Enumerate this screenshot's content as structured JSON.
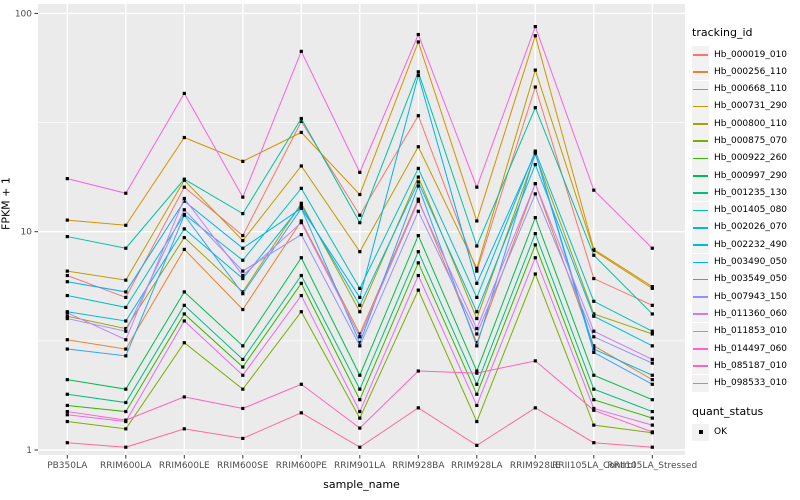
{
  "figure": {
    "y_axis": {
      "label": "FPKM + 1",
      "ticks": [
        {
          "label": "100",
          "value": 100
        },
        {
          "label": "10",
          "value": 10
        },
        {
          "label": "1",
          "value": 1
        }
      ]
    },
    "x_axis": {
      "label": "sample_name"
    },
    "panel_bg": "#EBEBEB",
    "grid_color": "#FFFFFF",
    "tick_color": "#333333",
    "tick_label_color": "#4D4D4D",
    "point_color": "#000000"
  },
  "chart_data": {
    "type": "line",
    "title": "",
    "xlabel": "sample_name",
    "ylabel": "FPKM + 1",
    "yscale": "log10",
    "ylim": [
      1,
      100
    ],
    "grid": true,
    "legend_position": "right",
    "legend": {
      "title": "tracking_id"
    },
    "point_legend": {
      "title": "quant_status",
      "label": "OK",
      "shape": "filled-square",
      "color": "#000000"
    },
    "x_categories": [
      "PB350LA",
      "RRIM600LA",
      "RRIM600LE",
      "RRIM600SE",
      "RRIM600PE",
      "RRIM901LA",
      "RRIM928BA",
      "RRIM928LA",
      "RRIM928LE",
      "RRII105LA_Control",
      "RRII105LA_Stressed"
    ],
    "series": [
      {
        "name": "Hb_000019_010",
        "color": "#F8766D",
        "values": [
          6.3,
          5.0,
          16.0,
          9.6,
          32,
          11.9,
          34,
          6.6,
          46,
          6.1,
          4.6
        ]
      },
      {
        "name": "Hb_000256_110",
        "color": "#EA8331",
        "values": [
          3.2,
          2.9,
          8.3,
          4.4,
          11.2,
          3.4,
          14.1,
          3.1,
          16.6,
          3.0,
          2.1
        ]
      },
      {
        "name": "Hb_000668_110",
        "color": "#D89000",
        "values": [
          11.3,
          10.7,
          27,
          21,
          28.5,
          14.8,
          74,
          11.2,
          79,
          8.3,
          5.6
        ]
      },
      {
        "name": "Hb_000731_290",
        "color": "#C09B00",
        "values": [
          6.6,
          6.0,
          17.2,
          9.1,
          20,
          8.1,
          24.5,
          6.8,
          55,
          8.2,
          5.5
        ]
      },
      {
        "name": "Hb_000800_110",
        "color": "#A3A500",
        "values": [
          4.1,
          3.6,
          9.4,
          5.3,
          13.5,
          4.3,
          17.8,
          4.0,
          22.6,
          4.2,
          3.4
        ]
      },
      {
        "name": "Hb_000875_070",
        "color": "#7CAE00",
        "values": [
          1.35,
          1.25,
          3.1,
          1.9,
          4.3,
          1.4,
          5.4,
          1.35,
          6.4,
          1.3,
          1.2
        ]
      },
      {
        "name": "Hb_000922_260",
        "color": "#39B600",
        "values": [
          1.6,
          1.5,
          4.2,
          2.4,
          5.8,
          1.7,
          7.2,
          1.8,
          8.7,
          1.7,
          1.4
        ]
      },
      {
        "name": "Hb_000997_290",
        "color": "#00BB4E",
        "values": [
          2.1,
          1.9,
          5.3,
          3.0,
          7.6,
          2.2,
          9.6,
          2.3,
          11.6,
          2.2,
          1.7
        ]
      },
      {
        "name": "Hb_001235_130",
        "color": "#00BF7D",
        "values": [
          1.8,
          1.65,
          4.6,
          2.6,
          6.3,
          1.9,
          8.1,
          2.0,
          9.8,
          1.9,
          1.5
        ]
      },
      {
        "name": "Hb_001405_080",
        "color": "#00C1A3",
        "values": [
          9.5,
          8.4,
          17.4,
          12.1,
          33,
          11.0,
          54,
          8.6,
          37,
          7.8,
          4.2
        ]
      },
      {
        "name": "Hb_002026_070",
        "color": "#00BFC4",
        "values": [
          5.1,
          4.5,
          12.0,
          7.4,
          15.8,
          5.5,
          19.5,
          5.0,
          23.4,
          4.8,
          3.5
        ]
      },
      {
        "name": "Hb_002232_490",
        "color": "#00BAE0",
        "values": [
          4.3,
          3.9,
          10.3,
          6.1,
          13.2,
          4.6,
          16.9,
          4.3,
          20.3,
          4.1,
          3.0
        ]
      },
      {
        "name": "Hb_003490_050",
        "color": "#00B0F6",
        "values": [
          5.9,
          5.3,
          13.8,
          8.4,
          12.8,
          5.0,
          52,
          5.8,
          23,
          2.9,
          2.2
        ]
      },
      {
        "name": "Hb_003549_050",
        "color": "#35A2FF",
        "values": [
          2.9,
          2.7,
          11.9,
          5.2,
          12.8,
          3.1,
          16.2,
          3.0,
          22.9,
          2.8,
          2.0
        ]
      },
      {
        "name": "Hb_007943_150",
        "color": "#9590FF",
        "values": [
          4.0,
          3.5,
          12.6,
          6.6,
          9.7,
          3.0,
          12.4,
          3.4,
          14.9,
          3.3,
          2.5
        ]
      },
      {
        "name": "Hb_011360_060",
        "color": "#C77CFF",
        "values": [
          4.25,
          3.2,
          14.2,
          6.3,
          11.0,
          3.3,
          13.8,
          3.6,
          16.6,
          3.5,
          2.6
        ]
      },
      {
        "name": "Hb_011853_010",
        "color": "#E76BF3",
        "values": [
          1.45,
          1.35,
          3.9,
          2.2,
          5.1,
          1.5,
          6.3,
          1.6,
          7.6,
          1.55,
          1.3
        ]
      },
      {
        "name": "Hb_014497_060",
        "color": "#FA62DB",
        "values": [
          17.5,
          15,
          43,
          14.4,
          67,
          18.7,
          80,
          16,
          87,
          15.5,
          8.4
        ]
      },
      {
        "name": "Hb_085187_010",
        "color": "#FF62BC",
        "values": [
          1.5,
          1.37,
          1.75,
          1.55,
          2.0,
          1.26,
          2.3,
          2.25,
          2.56,
          1.52,
          1.21
        ]
      },
      {
        "name": "Hb_098533_010",
        "color": "#FF6A98",
        "values": [
          1.08,
          1.03,
          1.25,
          1.13,
          1.48,
          1.03,
          1.56,
          1.05,
          1.56,
          1.08,
          1.03
        ]
      }
    ]
  }
}
